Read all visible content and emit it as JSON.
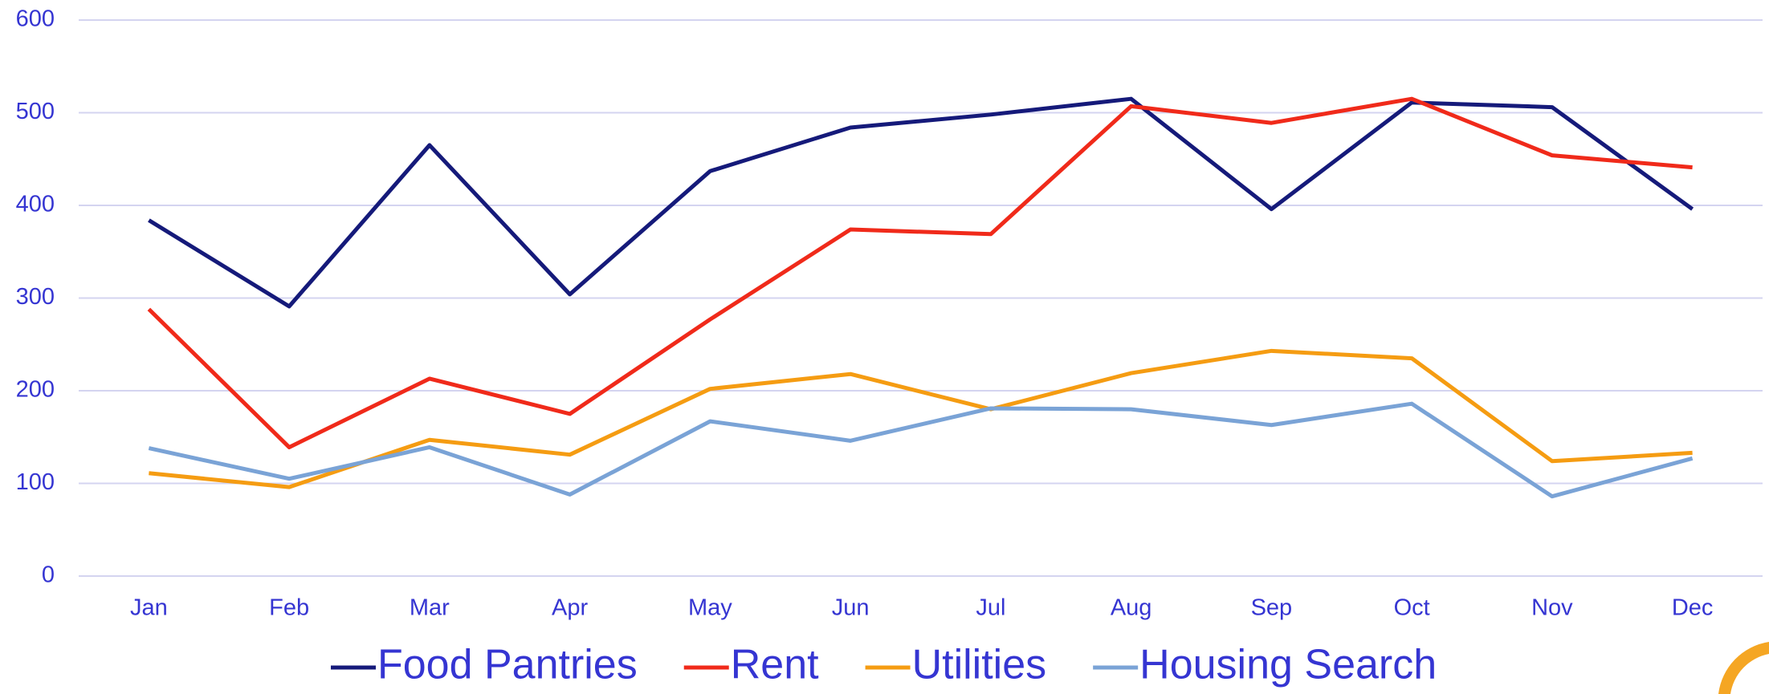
{
  "chart_data": {
    "type": "line",
    "categories": [
      "Jan",
      "Feb",
      "Mar",
      "Apr",
      "May",
      "Jun",
      "Jul",
      "Aug",
      "Sep",
      "Oct",
      "Nov",
      "Dec"
    ],
    "series": [
      {
        "name": "Food Pantries",
        "color": "#151a7a",
        "values": [
          384,
          291,
          465,
          304,
          437,
          484,
          498,
          515,
          396,
          511,
          506,
          396
        ]
      },
      {
        "name": "Rent",
        "color": "#f02a1a",
        "values": [
          288,
          139,
          213,
          175,
          277,
          374,
          369,
          507,
          489,
          515,
          454,
          441
        ]
      },
      {
        "name": "Utilities",
        "color": "#f59c12",
        "values": [
          111,
          96,
          147,
          131,
          202,
          218,
          180,
          219,
          243,
          235,
          124,
          133
        ]
      },
      {
        "name": "Housing Search",
        "color": "#7aa3d6",
        "values": [
          138,
          105,
          139,
          88,
          167,
          146,
          181,
          180,
          163,
          186,
          86,
          127
        ]
      }
    ],
    "ylim": [
      0,
      600
    ],
    "yticks": [
      0,
      100,
      200,
      300,
      400,
      500,
      600
    ],
    "grid": true,
    "legend": "bottom"
  }
}
